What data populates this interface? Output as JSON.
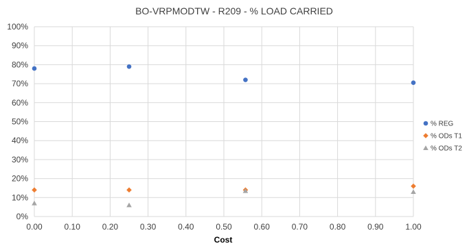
{
  "chart_data": {
    "type": "scatter",
    "title": "BO-VRPMODTW - R209 - % LOAD CARRIED",
    "xlabel": "Cost",
    "ylabel": "",
    "xlim": [
      0,
      1
    ],
    "ylim": [
      0,
      1
    ],
    "x_ticks": [
      "0.00",
      "0.10",
      "0.20",
      "0.30",
      "0.40",
      "0.50",
      "0.60",
      "0.70",
      "0.80",
      "0.90",
      "1.00"
    ],
    "y_ticks": [
      "0%",
      "10%",
      "20%",
      "30%",
      "40%",
      "50%",
      "60%",
      "70%",
      "80%",
      "90%",
      "100%"
    ],
    "grid": true,
    "legend_position": "right",
    "series": [
      {
        "name": "% REG",
        "color": "#4472c4",
        "marker": "circle",
        "points": [
          {
            "x": 0.0,
            "y": 0.78
          },
          {
            "x": 0.25,
            "y": 0.79
          },
          {
            "x": 0.557,
            "y": 0.72
          },
          {
            "x": 1.0,
            "y": 0.705
          }
        ]
      },
      {
        "name": "% ODs T1",
        "color": "#ed7d31",
        "marker": "diamond",
        "points": [
          {
            "x": 0.0,
            "y": 0.14
          },
          {
            "x": 0.25,
            "y": 0.14
          },
          {
            "x": 0.557,
            "y": 0.14
          },
          {
            "x": 1.0,
            "y": 0.16
          }
        ]
      },
      {
        "name": "% ODs T2",
        "color": "#a5a5a5",
        "marker": "triangle",
        "points": [
          {
            "x": 0.0,
            "y": 0.07
          },
          {
            "x": 0.25,
            "y": 0.06
          },
          {
            "x": 0.557,
            "y": 0.135
          },
          {
            "x": 1.0,
            "y": 0.13
          }
        ]
      }
    ]
  }
}
